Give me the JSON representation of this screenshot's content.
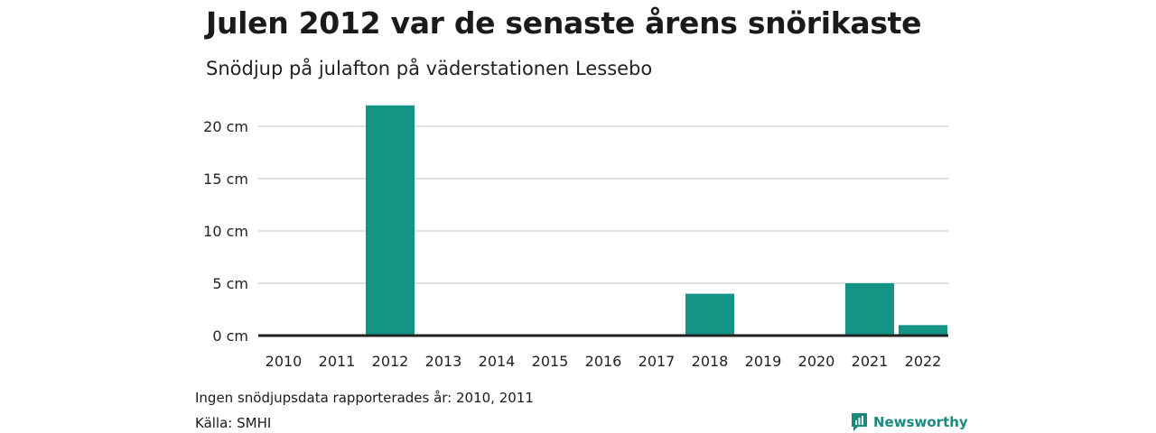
{
  "title": "Julen 2012 var de senaste årens snörikaste",
  "subtitle": "Snödjup på julafton på väderstationen Lessebo",
  "note": "Ingen snödjupsdata rapporterades år: 2010, 2011",
  "source": "Källa: SMHI",
  "brand": {
    "name": "Newsworthy",
    "icon": "newsworthy-logo-icon"
  },
  "colors": {
    "bar": "#149484",
    "grid": "#d9d9d9",
    "axis": "#222222"
  },
  "chart_data": {
    "type": "bar",
    "categories": [
      "2010",
      "2011",
      "2012",
      "2013",
      "2014",
      "2015",
      "2016",
      "2017",
      "2018",
      "2019",
      "2020",
      "2021",
      "2022"
    ],
    "values": [
      null,
      null,
      22,
      0,
      0,
      0,
      0,
      0,
      4,
      0,
      0,
      5,
      1
    ],
    "unit": "cm",
    "ylim": [
      0,
      20
    ],
    "yticks": [
      0,
      5,
      10,
      15,
      20
    ],
    "ytick_labels": [
      "0 cm",
      "5 cm",
      "10 cm",
      "15 cm",
      "20 cm"
    ],
    "grid": true,
    "legend": "none"
  }
}
